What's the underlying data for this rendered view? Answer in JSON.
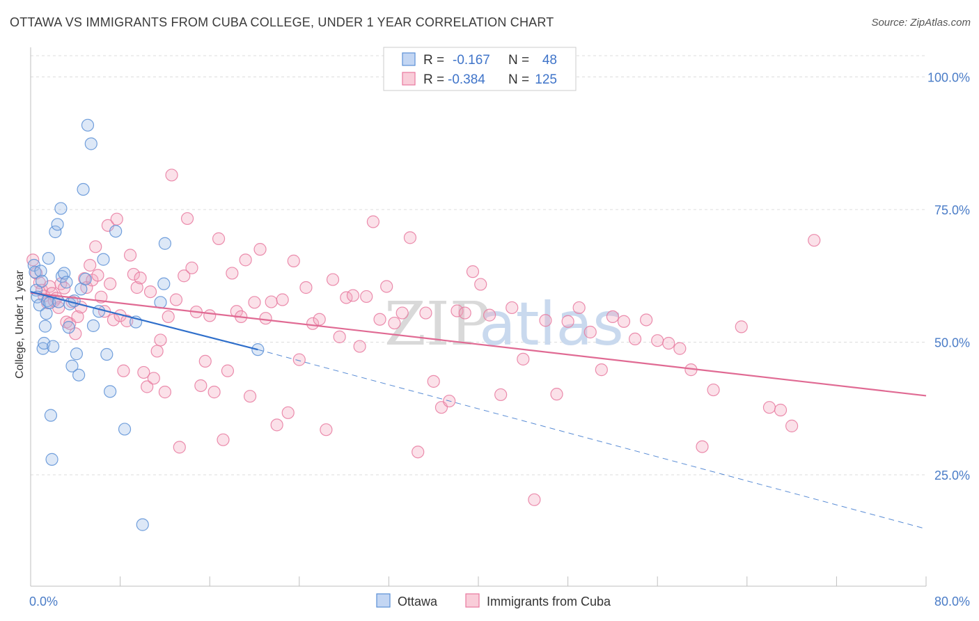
{
  "title": "OTTAWA VS IMMIGRANTS FROM CUBA COLLEGE, UNDER 1 YEAR CORRELATION CHART",
  "source": "Source: ZipAtlas.com",
  "watermark": {
    "zip": "ZIP",
    "atlas": "atlas"
  },
  "legend": {
    "r_label": "R =",
    "n_label": "N =",
    "rows": [
      {
        "series": "Ottawa",
        "r": "-0.167",
        "n": "48"
      },
      {
        "series": "Immigrants from Cuba",
        "r": "-0.384",
        "n": "125"
      }
    ]
  },
  "chart_data": {
    "type": "scatter",
    "title": "OTTAWA VS IMMIGRANTS FROM CUBA COLLEGE, UNDER 1 YEAR CORRELATION CHART",
    "ylabel": "College, Under 1 year",
    "xlabel": "",
    "x_tick_labels": [
      "0.0%",
      "80.0%"
    ],
    "y_tick_labels": [
      "100.0%",
      "75.0%",
      "50.0%",
      "25.0%"
    ],
    "y_ticks": [
      100,
      75,
      50,
      25
    ],
    "xlim": [
      0,
      80
    ],
    "ylim": [
      4,
      104
    ],
    "grid": "horizontal dashed",
    "legend_position": "top-center",
    "colors": {
      "ottawa": "#5b8fd6",
      "cuba": "#e8799f",
      "ottawa_line": "#2f6fcb",
      "cuba_line": "#e06a93"
    },
    "series": [
      {
        "name": "Ottawa",
        "r": -0.167,
        "n": 48,
        "trend": {
          "x": [
            0,
            20.3
          ],
          "y": [
            59.5,
            48.6
          ],
          "extended_to": [
            80,
            14.8
          ]
        },
        "x": [
          0.3,
          0.4,
          0.5,
          0.6,
          0.8,
          0.9,
          1.0,
          1.1,
          1.2,
          1.3,
          1.4,
          1.5,
          1.6,
          1.7,
          1.8,
          1.9,
          2.0,
          2.2,
          2.4,
          2.5,
          2.7,
          2.8,
          3.0,
          3.2,
          3.4,
          3.5,
          3.7,
          3.9,
          4.1,
          4.3,
          4.5,
          4.7,
          4.9,
          5.1,
          5.4,
          5.6,
          6.1,
          6.5,
          6.8,
          7.1,
          7.6,
          8.4,
          9.4,
          10.0,
          11.6,
          11.9,
          12.0,
          20.3
        ],
        "y": [
          64.5,
          63.2,
          59.8,
          58.5,
          57.0,
          63.4,
          61.5,
          48.8,
          49.8,
          53.0,
          55.4,
          57.8,
          65.8,
          57.4,
          36.2,
          27.9,
          49.2,
          70.8,
          72.2,
          57.6,
          75.2,
          62.4,
          63.0,
          61.3,
          52.8,
          57.2,
          45.5,
          57.8,
          47.8,
          43.8,
          60.0,
          78.8,
          61.9,
          90.9,
          87.4,
          53.1,
          55.8,
          65.6,
          47.7,
          40.7,
          70.9,
          33.6,
          53.8,
          15.6,
          57.5,
          61.0,
          68.6,
          48.6
        ]
      },
      {
        "name": "Immigrants from Cuba",
        "r": -0.384,
        "n": 125,
        "trend": {
          "x": [
            0,
            80
          ],
          "y": [
            59.3,
            39.9
          ]
        },
        "x": [
          0.2,
          0.5,
          0.8,
          1.0,
          1.2,
          1.5,
          1.7,
          1.9,
          2.1,
          2.3,
          2.5,
          2.7,
          3.0,
          3.2,
          3.5,
          3.7,
          4.0,
          4.2,
          4.5,
          4.8,
          5.0,
          5.3,
          5.5,
          5.8,
          6.0,
          6.3,
          6.6,
          6.9,
          7.1,
          7.4,
          7.7,
          8.0,
          8.3,
          8.6,
          8.9,
          9.2,
          9.5,
          9.8,
          10.1,
          10.4,
          10.7,
          11.0,
          11.3,
          11.6,
          12.0,
          12.3,
          12.6,
          13.0,
          13.3,
          13.7,
          14.0,
          14.4,
          14.8,
          15.2,
          15.6,
          16.0,
          16.4,
          16.8,
          17.2,
          17.6,
          18.0,
          18.4,
          18.8,
          19.2,
          19.6,
          20.0,
          20.5,
          21.0,
          21.5,
          22.0,
          22.5,
          23.0,
          23.5,
          24.0,
          24.6,
          25.2,
          25.8,
          26.4,
          27.0,
          27.6,
          28.2,
          28.8,
          29.4,
          30.0,
          30.6,
          31.2,
          31.8,
          32.5,
          33.2,
          33.9,
          34.6,
          35.3,
          36.0,
          36.7,
          37.4,
          38.1,
          38.8,
          39.5,
          40.2,
          41.0,
          42.0,
          43.0,
          44.0,
          45.0,
          46.0,
          47.0,
          48.0,
          49.0,
          50.0,
          51.0,
          52.0,
          53.0,
          54.0,
          55.0,
          56.0,
          57.0,
          58.0,
          59.0,
          60.0,
          61.0,
          63.5,
          66.0,
          67.0,
          68.0,
          70.0
        ],
        "y": [
          65.5,
          63.0,
          61.2,
          59.8,
          58.7,
          57.4,
          60.5,
          59.2,
          57.8,
          58.3,
          56.5,
          61.0,
          60.2,
          53.8,
          53.5,
          57.6,
          51.6,
          54.8,
          56.6,
          62.0,
          60.3,
          64.5,
          61.7,
          68.0,
          62.6,
          58.5,
          55.8,
          72.0,
          61.0,
          54.2,
          73.2,
          55.0,
          44.6,
          54.0,
          66.4,
          62.8,
          60.3,
          62.1,
          44.3,
          41.6,
          59.5,
          43.2,
          48.3,
          50.4,
          40.6,
          54.8,
          81.5,
          58.0,
          30.2,
          62.5,
          73.3,
          64.0,
          55.7,
          41.8,
          46.4,
          55.0,
          40.6,
          69.5,
          31.6,
          44.6,
          63.0,
          55.8,
          54.8,
          65.5,
          39.8,
          57.5,
          67.5,
          54.5,
          57.6,
          34.4,
          58.0,
          36.7,
          65.3,
          46.7,
          60.3,
          53.5,
          54.3,
          33.5,
          61.8,
          51.0,
          58.4,
          58.8,
          49.2,
          58.6,
          72.7,
          54.3,
          60.5,
          53.6,
          55.5,
          69.7,
          29.3,
          55.5,
          42.6,
          37.7,
          38.9,
          55.9,
          55.5,
          63.3,
          60.9,
          55.1,
          40.1,
          56.5,
          46.8,
          20.3,
          54.1,
          40.2,
          53.9,
          56.5,
          51.9,
          44.8,
          54.8,
          53.9,
          50.6,
          54.2,
          50.3,
          49.8,
          48.8,
          44.8,
          30.3,
          41.0,
          52.9,
          37.7,
          37.2,
          34.2,
          69.2
        ]
      }
    ]
  }
}
